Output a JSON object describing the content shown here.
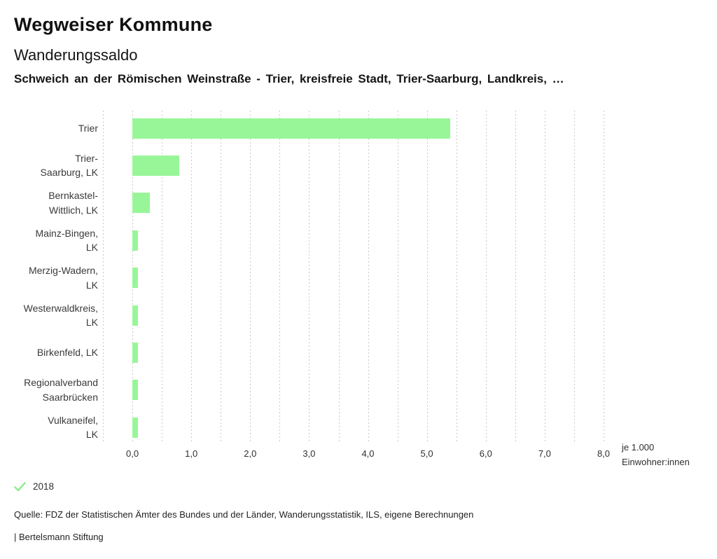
{
  "header": {
    "title": "Wegweiser Kommune",
    "subtitle": "Wanderungssaldo",
    "description": "Schweich an der Römischen Weinstraße - Trier, kreisfreie Stadt, Trier-Saarburg, Landkreis, …"
  },
  "chart_data": {
    "type": "bar",
    "orientation": "horizontal",
    "title": "Wanderungssaldo",
    "categories": [
      "Trier",
      "Trier-Saarburg, LK",
      "Bernkastel-Wittlich, LK",
      "Mainz-Bingen, LK",
      "Merzig-Wadern, LK",
      "Westerwaldkreis, LK",
      "Birkenfeld, LK",
      "Regionalverband Saarbrücken",
      "Vulkaneifel, LK"
    ],
    "category_label_lines": [
      [
        "Trier"
      ],
      [
        "Trier-",
        "Saarburg, LK"
      ],
      [
        "Bernkastel-",
        "Wittlich, LK"
      ],
      [
        "Mainz-Bingen,",
        "LK"
      ],
      [
        "Merzig-Wadern,",
        "LK"
      ],
      [
        "Westerwaldkreis,",
        "LK"
      ],
      [
        "Birkenfeld, LK"
      ],
      [
        "Regionalverband",
        "Saarbrücken"
      ],
      [
        "Vulkaneifel,",
        "LK"
      ]
    ],
    "series": [
      {
        "name": "2018",
        "values": [
          5.4,
          0.8,
          0.3,
          0.1,
          0.1,
          0.1,
          0.1,
          0.1,
          0.1
        ]
      }
    ],
    "x_ticks": [
      "0,0",
      "1,0",
      "2,0",
      "3,0",
      "4,0",
      "5,0",
      "6,0",
      "7,0",
      "8,0"
    ],
    "xlim": [
      -0.5,
      8.0
    ],
    "gridline_step": 0.5,
    "grid": true,
    "xlabel": "je 1.000 Einwohner:innen",
    "xlabel_lines": [
      "je 1.000",
      "Einwohner:innen"
    ],
    "bar_color": "#98f698",
    "gridline_color": "#c9c9c9",
    "legend_position": "bottom-left"
  },
  "legend": {
    "year": "2018",
    "check_icon": "checkmark-icon",
    "check_color": "#90ee90"
  },
  "footer": {
    "source": "Quelle: FDZ der Statistischen Ämter des Bundes und der Länder, Wanderungsstatistik, ILS, eigene Berechnungen",
    "branding": "| Bertelsmann Stiftung"
  }
}
